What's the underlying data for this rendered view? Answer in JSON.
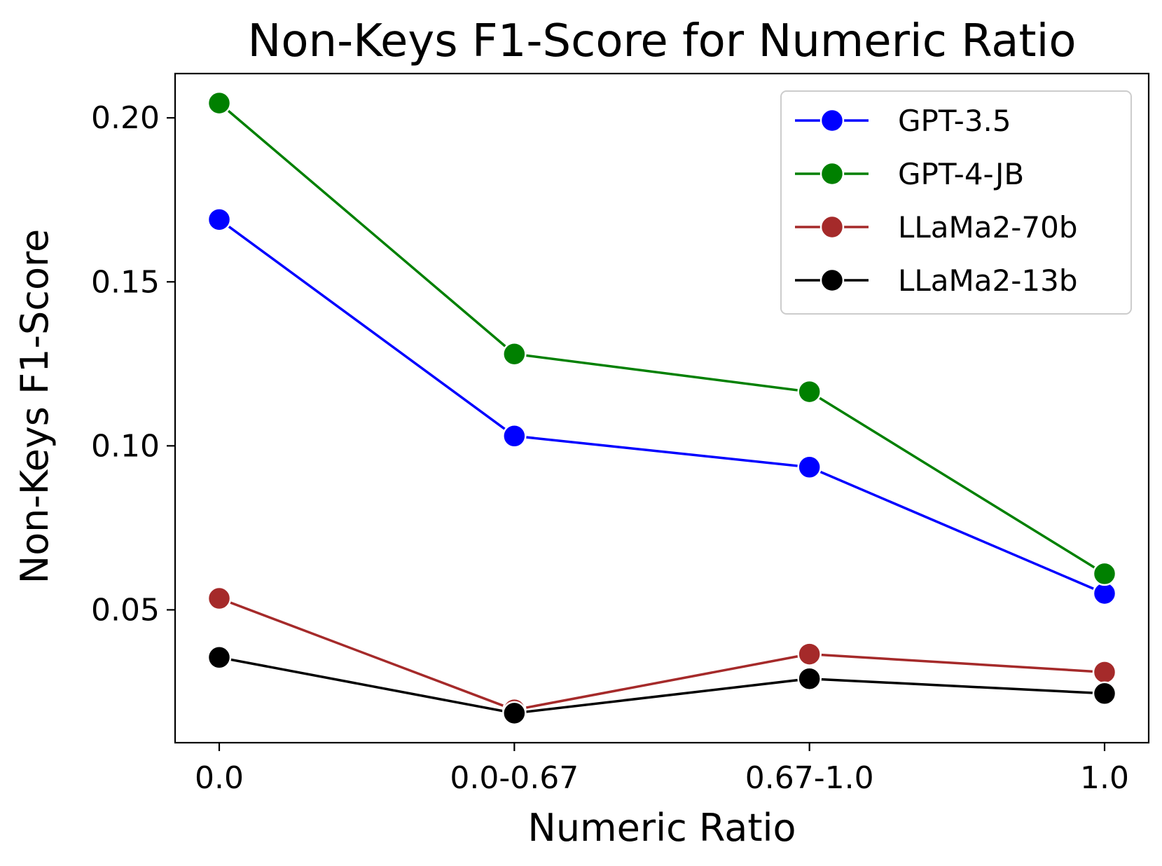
{
  "chart_data": {
    "type": "line",
    "title": "Non-Keys F1-Score for Numeric Ratio",
    "xlabel": "Numeric Ratio",
    "ylabel": "Non-Keys F1-Score",
    "categories": [
      "0.0",
      "0.0-0.67",
      "0.67-1.0",
      "1.0"
    ],
    "yticks": [
      "0.05",
      "0.10",
      "0.15",
      "0.20"
    ],
    "ytick_values": [
      0.05,
      0.1,
      0.15,
      0.2
    ],
    "ylim": [
      0.0095,
      0.2135
    ],
    "grid": false,
    "legend_position": "top-right",
    "series": [
      {
        "name": "GPT-3.5",
        "color": "#0000ff",
        "values": [
          0.169,
          0.103,
          0.0935,
          0.055
        ]
      },
      {
        "name": "GPT-4-JB",
        "color": "#008000",
        "values": [
          0.2045,
          0.128,
          0.1165,
          0.061
        ]
      },
      {
        "name": "LLaMa2-70b",
        "color": "#a52a2a",
        "values": [
          0.0535,
          0.0195,
          0.0365,
          0.031
        ]
      },
      {
        "name": "LLaMa2-13b",
        "color": "#000000",
        "values": [
          0.0355,
          0.0185,
          0.029,
          0.0245
        ]
      }
    ]
  }
}
